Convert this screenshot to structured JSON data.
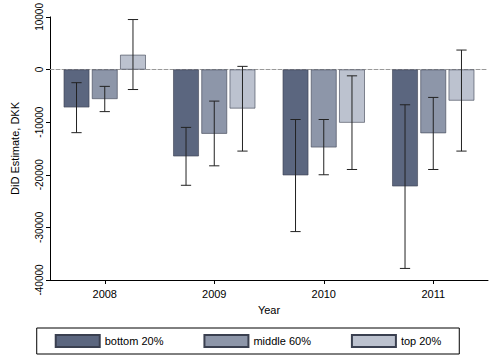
{
  "chart_data": {
    "type": "bar",
    "x_label": "Year",
    "y_label": "DiD Estimate, DKK",
    "categories": [
      "2008",
      "2009",
      "2010",
      "2011"
    ],
    "series": [
      {
        "name": "bottom 20%",
        "color": "#5b667f",
        "values": [
          -7200,
          -16500,
          -20100,
          -22200
        ],
        "ci": [
          [
            -12000,
            -2500
          ],
          [
            -22000,
            -11000
          ],
          [
            -30800,
            -9500
          ],
          [
            -37800,
            -6700
          ]
        ]
      },
      {
        "name": "middle 60%",
        "color": "#8d96a9",
        "values": [
          -5600,
          -12200,
          -14800,
          -12100
        ],
        "ci": [
          [
            -8000,
            -3200
          ],
          [
            -18300,
            -6000
          ],
          [
            -20000,
            -9500
          ],
          [
            -19000,
            -5300
          ]
        ]
      },
      {
        "name": "top 20%",
        "color": "#bcc2cf",
        "values": [
          2800,
          -7400,
          -10100,
          -5900
        ],
        "ci": [
          [
            -3800,
            9500
          ],
          [
            -15500,
            600
          ],
          [
            -19000,
            -1200
          ],
          [
            -15500,
            3700
          ]
        ]
      }
    ],
    "ylim": [
      -40000,
      10000
    ],
    "yticks": [
      -40000,
      -30000,
      -20000,
      -10000,
      0,
      10000
    ],
    "grid": false,
    "legend": "bottom"
  }
}
